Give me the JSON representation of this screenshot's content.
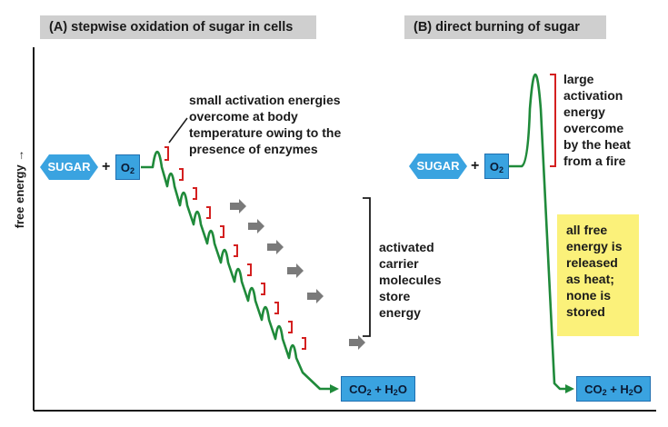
{
  "panel_a": {
    "title": "(A)  stepwise oxidation of sugar in cells",
    "sugar_label": "SUGAR",
    "plus": "+",
    "o2_label": "O",
    "o2_sub": "2",
    "activation_note": [
      "small activation energies",
      "overcome at body",
      "temperature owing to the",
      "presence of enzymes"
    ],
    "carrier_note": [
      "activated",
      "carrier",
      "molecules",
      "store",
      "energy"
    ],
    "product_co2": "CO",
    "product_co2_sub": "2",
    "product_plus": " + H",
    "product_h2o_sub": "2",
    "product_o": "O"
  },
  "panel_b": {
    "title": "(B)  direct burning of sugar",
    "sugar_label": "SUGAR",
    "plus": "+",
    "o2_label": "O",
    "o2_sub": "2",
    "activation_note": [
      "large",
      "activation",
      "energy",
      "overcome",
      "by the heat",
      "from a fire"
    ],
    "heat_note": [
      "all free",
      "energy is",
      "released",
      "as heat;",
      "none is",
      "stored"
    ],
    "product_co2": "CO",
    "product_co2_sub": "2",
    "product_plus": " + H",
    "product_h2o_sub": "2",
    "product_o": "O"
  },
  "y_axis_label": "free energy →",
  "colors": {
    "pathway": "#1f8a3a",
    "bracket_red": "#d42020",
    "box_blue": "#3aa3e0",
    "title_bg": "#cfcfcf",
    "highlight_yellow": "#fbf17a",
    "arrow_grey": "#7a7a7a"
  }
}
